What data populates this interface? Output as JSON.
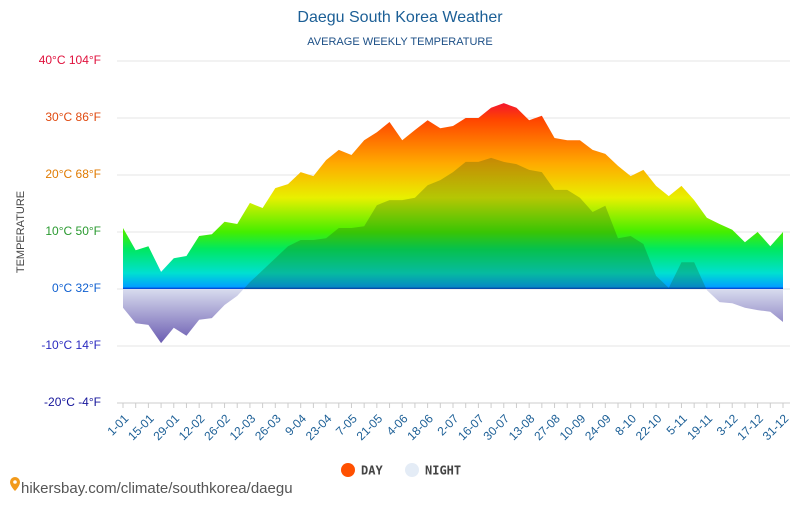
{
  "chart_data": {
    "type": "area",
    "title": "Daegu South Korea Weather",
    "subtitle": "AVERAGE WEEKLY TEMPERATURE",
    "y_label": "TEMPERATURE",
    "source": "hikersbay.com/climate/southkorea/daegu",
    "categories": [
      "1-01",
      null,
      "15-01",
      null,
      "29-01",
      null,
      "12-02",
      null,
      "26-02",
      null,
      "12-03",
      null,
      "26-03",
      null,
      "9-04",
      null,
      "23-04",
      null,
      "7-05",
      null,
      "21-05",
      null,
      "4-06",
      null,
      "18-06",
      null,
      "2-07",
      null,
      "16-07",
      null,
      "30-07",
      null,
      "13-08",
      null,
      "27-08",
      null,
      "10-09",
      null,
      "24-09",
      null,
      "8-10",
      null,
      "22-10",
      null,
      "5-11",
      null,
      "19-11",
      null,
      "3-12",
      null,
      "17-12",
      null,
      "31-12"
    ],
    "series": [
      {
        "name": "DAY",
        "color": "#ff5000",
        "values": [
          10.7,
          6.8,
          7.5,
          3,
          5.4,
          5.8,
          9.3,
          9.6,
          11.8,
          11.4,
          15.1,
          14.2,
          17.7,
          18.4,
          20.5,
          19.8,
          22.6,
          24.4,
          23.5,
          26.1,
          27.5,
          29.3,
          26.1,
          27.9,
          29.6,
          28.2,
          28.6,
          30,
          30,
          31.8,
          32.6,
          31.8,
          29.6,
          30.4,
          26.5,
          26.1,
          26.1,
          24.4,
          23.7,
          21.6,
          19.8,
          20.9,
          18.1,
          16.3,
          18.1,
          15.6,
          12.5,
          11.4,
          10.4,
          8.2,
          10,
          7.5,
          10
        ]
      },
      {
        "name": "NIGHT",
        "color": "#e4ecf6",
        "values": [
          -3.3,
          -6,
          -6.3,
          -9.5,
          -6.8,
          -8.2,
          -5.4,
          -5.1,
          -2.8,
          -1.2,
          1.2,
          3.3,
          5.4,
          7.5,
          8.6,
          8.6,
          8.9,
          10.7,
          10.7,
          11,
          14.7,
          15.6,
          15.6,
          16,
          18.2,
          19.1,
          20.5,
          22.3,
          22.3,
          23,
          22.3,
          21.9,
          20.9,
          20.5,
          17.4,
          17.4,
          16,
          13.5,
          14.6,
          8.9,
          9.3,
          7.9,
          2.3,
          0.2,
          4.7,
          4.7,
          -0.2,
          -2.3,
          -2.5,
          -3.3,
          -3.7,
          -4,
          -5.8
        ]
      }
    ],
    "ylim": [
      -20,
      40
    ],
    "yticks": [
      {
        "value": 40,
        "label": "40°C 104°F"
      },
      {
        "value": 30,
        "label": "30°C 86°F"
      },
      {
        "value": 20,
        "label": "20°C 68°F"
      },
      {
        "value": 10,
        "label": "10°C 50°F"
      },
      {
        "value": 0,
        "label": "0°C 32°F"
      },
      {
        "value": -10,
        "label": "-10°C 14°F"
      },
      {
        "value": -20,
        "label": "-20°C -4°F"
      }
    ],
    "grid": true
  }
}
